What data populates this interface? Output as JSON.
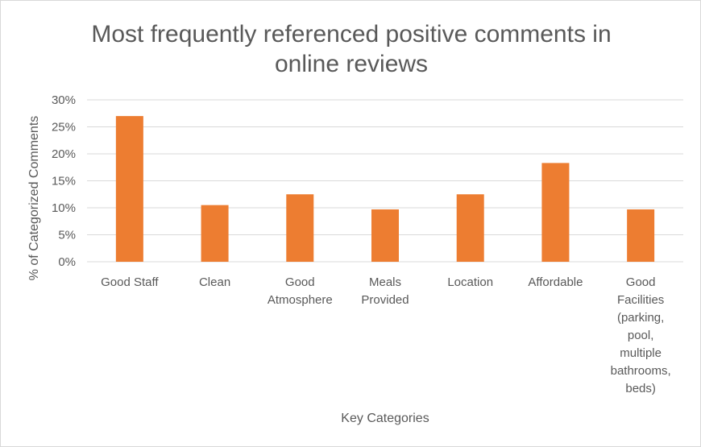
{
  "chart_data": {
    "type": "bar",
    "title_lines": [
      "Most frequently referenced positive comments in",
      "online reviews"
    ],
    "xlabel": "Key Categories",
    "ylabel": "% of Categorized Comments",
    "ylim": [
      0,
      30
    ],
    "ytick_values": [
      0,
      5,
      10,
      15,
      20,
      25,
      30
    ],
    "ytick_labels": [
      "0%",
      "5%",
      "10%",
      "15%",
      "20%",
      "25%",
      "30%"
    ],
    "grid": true,
    "legend": "none",
    "bar_color": "#ED7D31",
    "categories": [
      [
        "Good Staff"
      ],
      [
        "Clean"
      ],
      [
        "Good",
        "Atmosphere"
      ],
      [
        "Meals",
        "Provided"
      ],
      [
        "Location"
      ],
      [
        "Affordable"
      ],
      [
        "Good",
        "Facilities",
        "(parking,",
        "pool,",
        "multiple",
        "bathrooms,",
        "beds)"
      ]
    ],
    "values": [
      27,
      10.5,
      12.5,
      9.7,
      12.5,
      18.3,
      9.7
    ]
  }
}
